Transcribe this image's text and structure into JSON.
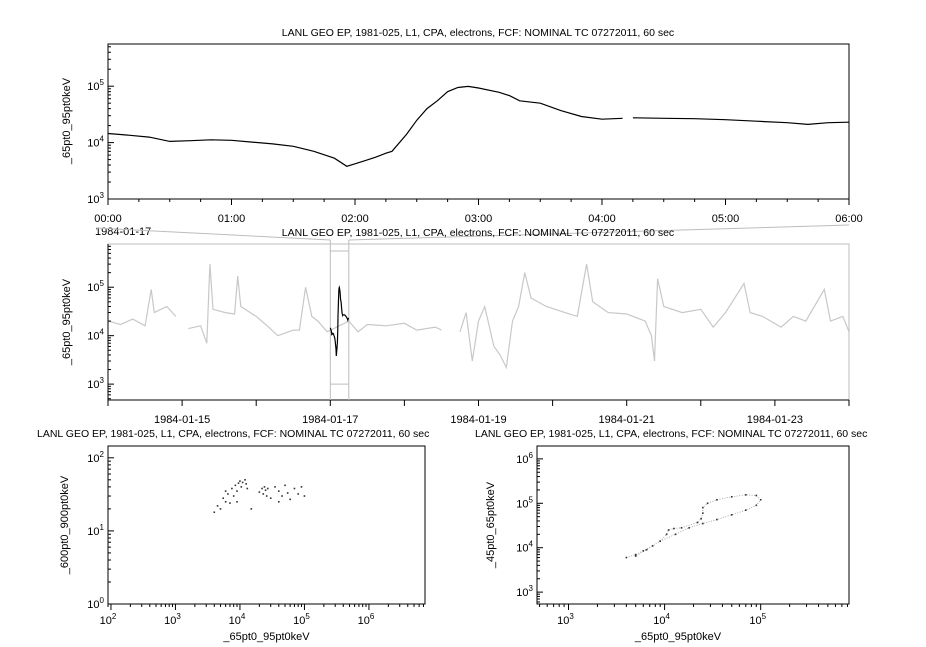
{
  "colors": {
    "axis": "#000000",
    "highlight_series": "#000000",
    "context_series": "#c8c8c8",
    "zoom_box": "#bdbdbd",
    "scatter": "#333333"
  },
  "chart_data": [
    {
      "type": "line",
      "title": "LANL GEO EP, 1981-025, L1, CPA, electrons, FCF: NOMINAL TC 07272011, 60 sec",
      "xlabel": "",
      "ylabel": "_65pt0_95pt0keV",
      "date_label": "1984-01-17",
      "yscale": "log",
      "ylim": [
        1000,
        560000
      ],
      "xlim": [
        "00:00",
        "06:00"
      ],
      "xticks": [
        "00:00",
        "01:00",
        "02:00",
        "03:00",
        "04:00",
        "05:00",
        "06:00"
      ],
      "yticks": [
        "10^3",
        "10^4",
        "10^5"
      ],
      "grid": false,
      "series": [
        {
          "x": [
            "00:00",
            "00:10",
            "00:20",
            "00:30",
            "00:40",
            "00:50",
            "01:00",
            "01:10",
            "01:20",
            "01:30",
            "01:40",
            "01:50",
            "01:56",
            "02:00",
            "02:05",
            "02:10",
            "02:15",
            "02:18",
            "02:25",
            "02:30",
            "02:35",
            "02:40",
            "02:45",
            "02:50",
            "02:55",
            "03:00",
            "03:10",
            "03:15",
            "03:20",
            "03:30",
            "03:40",
            "03:50",
            "04:00",
            "04:10",
            "04:12",
            "04:15",
            "04:30",
            "04:45",
            "05:00",
            "05:15",
            "05:30",
            "05:40",
            "05:50",
            "06:00"
          ],
          "y": [
            14500,
            13500,
            12500,
            10500,
            10800,
            11200,
            11000,
            10200,
            9500,
            8600,
            7000,
            5300,
            3800,
            4200,
            4800,
            5500,
            6500,
            7000,
            14000,
            25000,
            40000,
            55000,
            80000,
            95000,
            99000,
            93000,
            78000,
            68000,
            55000,
            50000,
            37000,
            29000,
            26000,
            27000,
            null,
            27500,
            27000,
            26500,
            25500,
            24000,
            22500,
            21000,
            22500,
            23000
          ]
        }
      ]
    },
    {
      "type": "line",
      "title": "LANL GEO EP, 1981-025, L1, CPA, electrons, FCF: NOMINAL TC 07272011, 60 sec",
      "xlabel": "",
      "ylabel": "_65pt0_95pt0keV",
      "yscale": "log",
      "ylim": [
        470,
        780000
      ],
      "xlim": [
        "1984-01-14T00:00",
        "1984-01-24T00:00"
      ],
      "xticks": [
        "1984-01-15",
        "1984-01-17",
        "1984-01-19",
        "1984-01-21",
        "1984-01-23"
      ],
      "yticks": [
        "10^3",
        "10^4",
        "10^5"
      ],
      "grid": false,
      "highlight_range": [
        "1984-01-17T00:00",
        "1984-01-17T06:00"
      ],
      "series": [
        {
          "x": [
            "1984-01-14T00:00",
            "1984-01-14T04:00",
            "1984-01-14T08:00",
            "1984-01-14T12:00",
            "1984-01-14T14:00",
            "1984-01-14T15:00",
            "1984-01-14T19:00",
            "1984-01-14T22:00",
            "1984-01-15T00:00",
            "1984-01-15T02:00",
            "1984-01-15T06:00",
            "1984-01-15T08:00",
            "1984-01-15T09:00",
            "1984-01-15T10:00",
            "1984-01-15T14:00",
            "1984-01-15T17:00",
            "1984-01-15T18:00",
            "1984-01-15T19:00",
            "1984-01-16T00:00",
            "1984-01-16T04:00",
            "1984-01-16T07:00",
            "1984-01-16T12:00",
            "1984-01-16T14:00",
            "1984-01-16T16:00",
            "1984-01-16T18:00",
            "1984-01-16T20:00",
            "1984-01-16T23:00",
            "1984-01-17T06:00",
            "1984-01-17T09:00",
            "1984-01-17T12:00",
            "1984-01-17T18:00",
            "1984-01-18T00:00",
            "1984-01-18T04:00",
            "1984-01-18T10:00",
            "1984-01-18T12:00",
            "1984-01-18T16:00",
            "1984-01-18T18:00",
            "1984-01-18T20:00",
            "1984-01-18T22:00",
            "1984-01-19T00:00",
            "1984-01-19T02:00",
            "1984-01-19T05:00",
            "1984-01-19T07:00",
            "1984-01-19T09:00",
            "1984-01-19T11:00",
            "1984-01-19T13:00",
            "1984-01-19T15:00",
            "1984-01-19T17:00",
            "1984-01-19T22:00",
            "1984-01-20T04:00",
            "1984-01-20T08:00",
            "1984-01-20T11:00",
            "1984-01-20T13:00",
            "1984-01-20T18:00",
            "1984-01-21T00:00",
            "1984-01-21T06:00",
            "1984-01-21T08:00",
            "1984-01-21T09:00",
            "1984-01-21T10:00",
            "1984-01-21T12:00",
            "1984-01-21T18:00",
            "1984-01-22T00:00",
            "1984-01-22T04:00",
            "1984-01-22T08:00",
            "1984-01-22T14:00",
            "1984-01-22T16:00",
            "1984-01-22T20:00",
            "1984-01-23T02:00",
            "1984-01-23T06:00",
            "1984-01-23T10:00",
            "1984-01-23T16:00",
            "1984-01-23T18:00",
            "1984-01-23T22:00",
            "1984-01-24T00:00"
          ],
          "y": [
            20000,
            17000,
            22000,
            16000,
            90000,
            30000,
            40000,
            25000,
            null,
            14000,
            16000,
            7000,
            300000,
            35000,
            30000,
            28000,
            170000,
            40000,
            25000,
            15000,
            10000,
            13000,
            13000,
            100000,
            25000,
            20000,
            12000,
            20000,
            12000,
            17000,
            16000,
            18000,
            13000,
            15000,
            13000,
            null,
            12000,
            30000,
            3000,
            20000,
            40000,
            6000,
            4000,
            2200,
            20000,
            40000,
            200000,
            60000,
            40000,
            30000,
            25000,
            300000,
            50000,
            30000,
            28000,
            20000,
            10000,
            3000,
            150000,
            40000,
            30000,
            35000,
            15000,
            30000,
            120000,
            30000,
            25000,
            15000,
            25000,
            20000,
            90000,
            20000,
            25000,
            12000
          ]
        }
      ]
    },
    {
      "type": "scatter",
      "title": "LANL GEO EP, 1981-025, L1, CPA, electrons, FCF: NOMINAL TC 07272011, 60 sec",
      "xlabel": "_65pt0_95pt0keV",
      "ylabel": "_600pt0_900pt0keV",
      "xscale": "log",
      "yscale": "log",
      "xlim": [
        90,
        7400000
      ],
      "ylim": [
        1,
        145
      ],
      "xticks": [
        "10^2",
        "10^3",
        "10^4",
        "10^5",
        "10^6"
      ],
      "yticks": [
        "10^0",
        "10^1",
        "10^2"
      ],
      "grid": false,
      "points": [
        [
          4000,
          18
        ],
        [
          4500,
          22
        ],
        [
          5000,
          20
        ],
        [
          5500,
          28
        ],
        [
          6000,
          25
        ],
        [
          6500,
          32
        ],
        [
          7000,
          24
        ],
        [
          7500,
          38
        ],
        [
          8000,
          30
        ],
        [
          8500,
          42
        ],
        [
          9000,
          35
        ],
        [
          9500,
          45
        ],
        [
          10000,
          48
        ],
        [
          10500,
          40
        ],
        [
          11000,
          46
        ],
        [
          12000,
          50
        ],
        [
          12500,
          44
        ],
        [
          13000,
          38
        ],
        [
          15000,
          20
        ],
        [
          20000,
          34
        ],
        [
          22000,
          38
        ],
        [
          23000,
          32
        ],
        [
          24000,
          40
        ],
        [
          25000,
          36
        ],
        [
          26000,
          30
        ],
        [
          27000,
          38
        ],
        [
          30000,
          28
        ],
        [
          35000,
          40
        ],
        [
          40000,
          35
        ],
        [
          45000,
          30
        ],
        [
          50000,
          42
        ],
        [
          55000,
          33
        ],
        [
          60000,
          27
        ],
        [
          70000,
          38
        ],
        [
          80000,
          32
        ],
        [
          90000,
          40
        ],
        [
          100000,
          30
        ],
        [
          9000,
          25
        ],
        [
          6000,
          35
        ],
        [
          40000,
          25
        ]
      ]
    },
    {
      "type": "scatter",
      "title": "LANL GEO EP, 1981-025, L1, CPA, electrons, FCF: NOMINAL TC 07272011, 60 sec",
      "xlabel": "_65pt0_95pt0keV",
      "ylabel": "_45pt0_65pt0keV",
      "xscale": "log",
      "yscale": "log",
      "xlim": [
        470,
        830000
      ],
      "ylim": [
        540,
        1950000
      ],
      "xticks": [
        "10^3",
        "10^4",
        "10^5"
      ],
      "yticks": [
        "10^3",
        "10^4",
        "10^5",
        "10^6"
      ],
      "grid": false,
      "points": [
        [
          4000,
          6000
        ],
        [
          5000,
          7000
        ],
        [
          6000,
          8500
        ],
        [
          7500,
          11000
        ],
        [
          9000,
          14000
        ],
        [
          10500,
          20000
        ],
        [
          11000,
          25000
        ],
        [
          12500,
          27000
        ],
        [
          15000,
          28000
        ],
        [
          22000,
          37000
        ],
        [
          24000,
          45000
        ],
        [
          25000,
          60000
        ],
        [
          25000,
          80000
        ],
        [
          28000,
          100000
        ],
        [
          35000,
          120000
        ],
        [
          50000,
          140000
        ],
        [
          70000,
          155000
        ],
        [
          90000,
          150000
        ],
        [
          100000,
          120000
        ],
        [
          90000,
          90000
        ],
        [
          70000,
          70000
        ],
        [
          50000,
          55000
        ],
        [
          35000,
          43000
        ],
        [
          25000,
          35000
        ],
        [
          18000,
          28000
        ],
        [
          13000,
          20000
        ],
        [
          9000,
          14000
        ],
        [
          6500,
          9000
        ],
        [
          5000,
          6500
        ]
      ]
    }
  ]
}
